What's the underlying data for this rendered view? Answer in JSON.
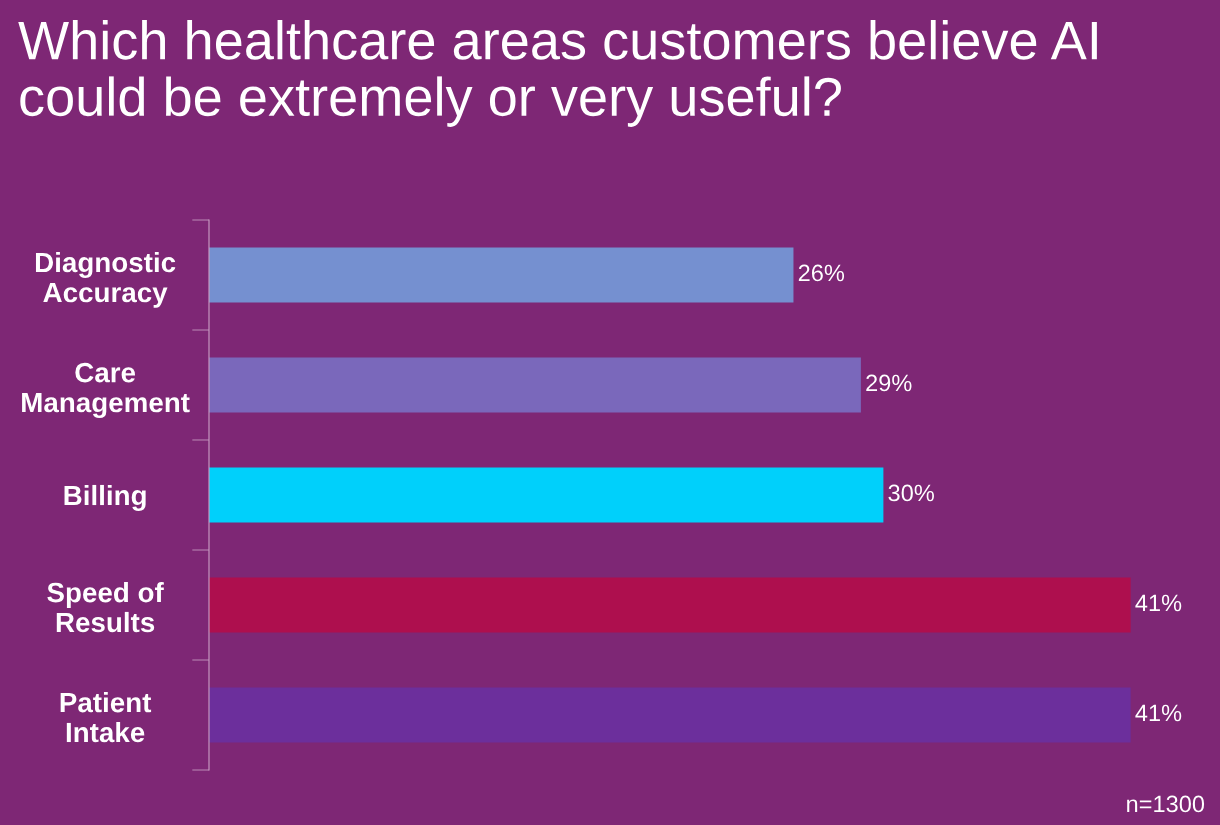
{
  "chart_data": {
    "type": "bar",
    "orientation": "horizontal",
    "title": "Which healthcare areas customers believe AI could be extremely or very useful?",
    "categories": [
      "Diagnostic\nAccuracy",
      "Care\nManagement",
      "Billing",
      "Speed of\nResults",
      "Patient\nIntake"
    ],
    "values": [
      26,
      29,
      30,
      41,
      41
    ],
    "colors": [
      "#7590d0",
      "#7a68bb",
      "#00d0fb",
      "#ae0f4e",
      "#6c2f9c"
    ],
    "value_labels": [
      "26%",
      "29%",
      "30%",
      "41%",
      "41%"
    ],
    "tick_labels": "y",
    "annotations": [
      "n=1300"
    ]
  }
}
